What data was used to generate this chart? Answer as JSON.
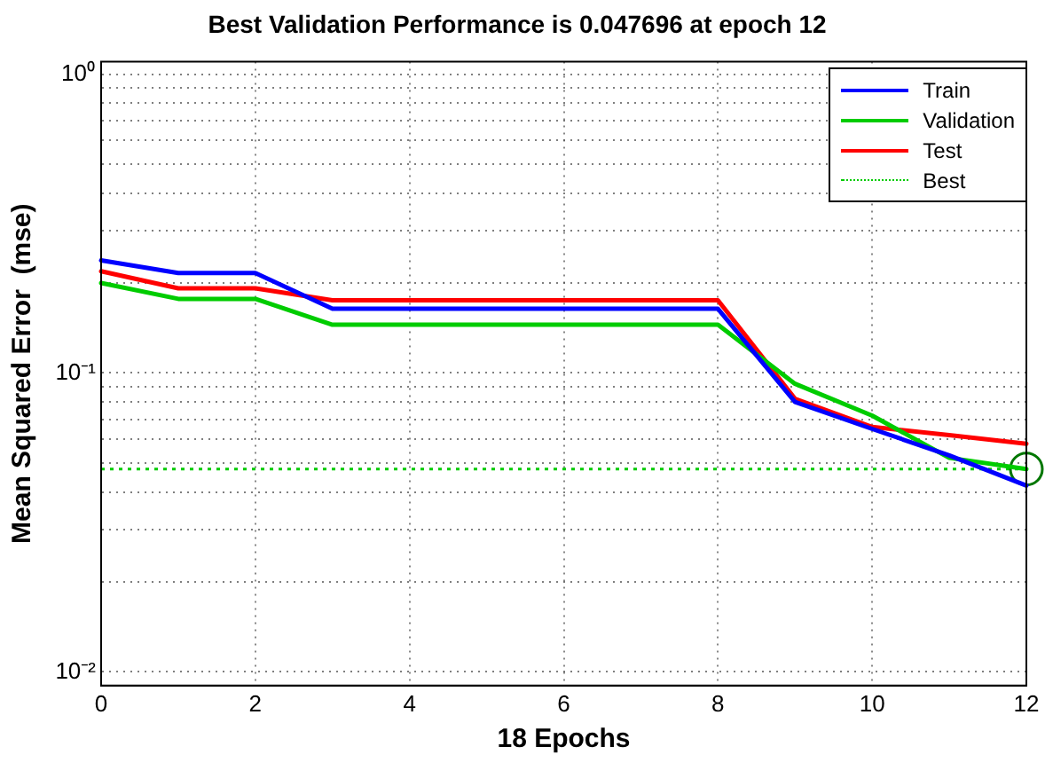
{
  "chart_data": {
    "type": "line",
    "title": "Best Validation Performance is 0.047696 at epoch 12",
    "xlabel": "18 Epochs",
    "ylabel": "Mean Squared Error  (mse)",
    "log": "y",
    "grid": true,
    "legend": "top right",
    "xlim": [
      0,
      12
    ],
    "xticks": [
      0,
      2,
      4,
      6,
      8,
      10,
      12
    ],
    "ylim": [
      0.009,
      1.1
    ],
    "yticks": [
      {
        "value": 0.01,
        "label": "10⁻²"
      },
      {
        "value": 0.02,
        "label": null
      },
      {
        "value": 0.03,
        "label": null
      },
      {
        "value": 0.04,
        "label": null
      },
      {
        "value": 0.05,
        "label": null
      },
      {
        "value": 0.06,
        "label": null
      },
      {
        "value": 0.07,
        "label": null
      },
      {
        "value": 0.08,
        "label": null
      },
      {
        "value": 0.09,
        "label": null
      },
      {
        "value": 0.1,
        "label": "10⁻¹"
      },
      {
        "value": 0.2,
        "label": null
      },
      {
        "value": 0.3,
        "label": null
      },
      {
        "value": 0.4,
        "label": null
      },
      {
        "value": 0.5,
        "label": null
      },
      {
        "value": 0.6,
        "label": null
      },
      {
        "value": 0.7,
        "label": null
      },
      {
        "value": 0.8,
        "label": null
      },
      {
        "value": 0.9,
        "label": null
      },
      {
        "value": 1,
        "label": "10⁰"
      }
    ],
    "x": [
      0,
      1,
      2,
      3,
      4,
      5,
      6,
      7,
      8,
      9,
      10,
      11,
      12
    ],
    "ref_lines": [
      {
        "axis": "y",
        "value": 0.047696,
        "label": "Best",
        "color": "#00cc00",
        "line_style": "dotted"
      }
    ],
    "series": [
      {
        "name": "Train",
        "color": "#0000ff",
        "line_style": "solid",
        "marker": "none",
        "values": [
          0.238,
          0.216,
          0.216,
          0.164,
          0.164,
          0.164,
          0.164,
          0.164,
          0.164,
          0.08,
          0.065,
          0.053,
          0.042
        ]
      },
      {
        "name": "Validation",
        "color": "#00cc00",
        "line_style": "solid",
        "marker": "none",
        "values": [
          0.2,
          0.177,
          0.177,
          0.145,
          0.145,
          0.145,
          0.145,
          0.145,
          0.145,
          0.092,
          0.072,
          0.052,
          0.047696
        ]
      },
      {
        "name": "Test",
        "color": "#ff0000",
        "line_style": "solid",
        "marker": "none",
        "values": [
          0.219,
          0.192,
          0.192,
          0.175,
          0.175,
          0.175,
          0.175,
          0.175,
          0.175,
          0.082,
          0.066,
          0.062,
          0.058
        ]
      },
      {
        "type": "scatter",
        "color": "#007700",
        "marker": "circle",
        "x": [
          12
        ],
        "values": [
          0.047696
        ]
      }
    ]
  }
}
